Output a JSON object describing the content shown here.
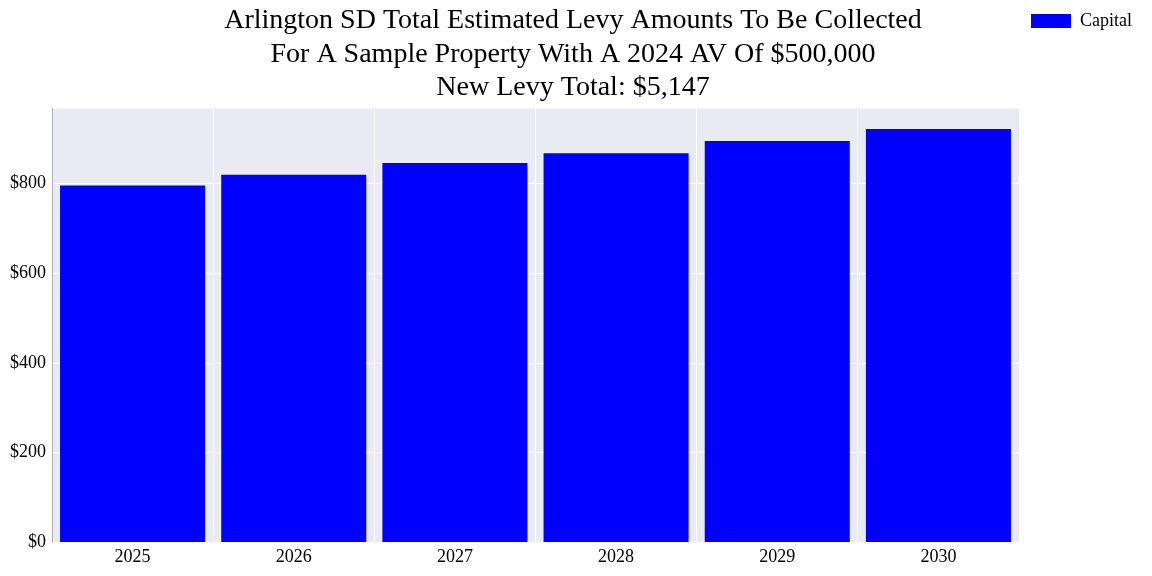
{
  "chart_data": {
    "type": "bar",
    "title": "Arlington SD Total Estimated Levy Amounts To Be Collected\nFor A Sample Property With A 2024 AV Of $500,000\nNew Levy Total: $5,147",
    "categories": [
      "2025",
      "2026",
      "2027",
      "2028",
      "2029",
      "2030"
    ],
    "series": [
      {
        "name": "Capital",
        "color": "#0000ff",
        "values": [
          796,
          820,
          846,
          868,
          895,
          922
        ]
      }
    ],
    "ylim": [
      0,
      967
    ],
    "yticks": [
      {
        "value": 0,
        "label": "$0"
      },
      {
        "value": 200,
        "label": "$200"
      },
      {
        "value": 400,
        "label": "$400"
      },
      {
        "value": 600,
        "label": "$600"
      },
      {
        "value": 800,
        "label": "$800"
      }
    ],
    "grid": true,
    "legend": "right"
  }
}
